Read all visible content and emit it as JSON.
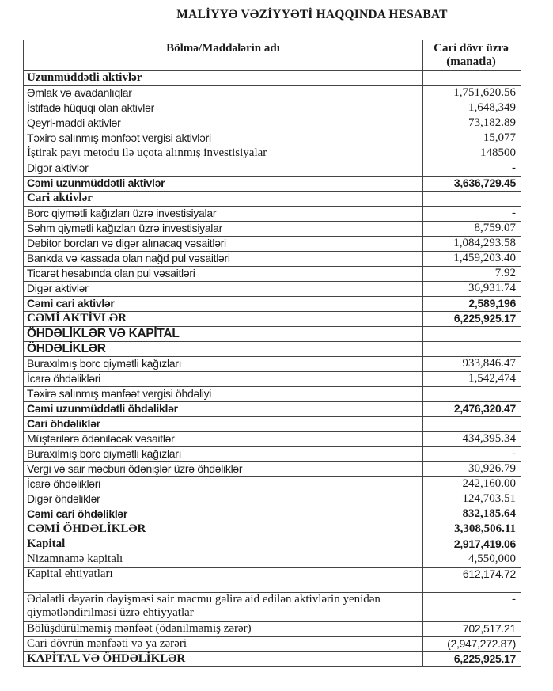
{
  "title": "MALİYYƏ VƏZİYYƏTİ HAQQINDA HESABAT",
  "header": {
    "name_col": "Bölmə/Maddələrin adı",
    "value_col": "Cari dövr üzrə (manatla)"
  },
  "rows": [
    {
      "label": "Uzunmüddətli aktivlər",
      "value": ""
    },
    {
      "label": "Əmlak və avadanlıqlar",
      "value": "1,751,620.56"
    },
    {
      "label": "İstifadə hüquqi olan aktivlər",
      "value": "1,648,349"
    },
    {
      "label": "Qeyri-maddi aktivlər",
      "value": "73,182.89"
    },
    {
      "label": "Təxirə salınmış mənfəət vergisi aktivləri",
      "value": "15,077"
    },
    {
      "label": "İştirak payı metodu ilə uçota alınmış investisiyalar",
      "value": "148500"
    },
    {
      "label": "Digər aktivlər",
      "value": "-"
    },
    {
      "label": "Cəmi uzunmüddətli aktivlər",
      "value": "3,636,729.45"
    },
    {
      "label": "Cari aktivlər",
      "value": ""
    },
    {
      "label": "Borc qiymətli kağızları üzrə investisiyalar",
      "value": "-"
    },
    {
      "label": "Səhm qiymətli kağızları üzrə investisiyalar",
      "value": "8,759.07"
    },
    {
      "label": "Debitor borcları və digər alınacaq vəsaitləri",
      "value": "1,084,293.58"
    },
    {
      "label": "Bankda və kassada olan nağd pul vəsaitləri",
      "value": "1,459,203.40"
    },
    {
      "label": "Ticarət hesabında olan pul vəsaitləri",
      "value": "7.92"
    },
    {
      "label": "Digər aktivlər",
      "value": "36,931.74"
    },
    {
      "label": "Cəmi cari aktivlər",
      "value": "2,589,196"
    },
    {
      "label": "CƏMİ AKTİVLƏR",
      "value": "6,225,925.17"
    },
    {
      "label": "ÖHDƏLİKLƏR VƏ KAPİTAL",
      "value": ""
    },
    {
      "label": "ÖHDƏLİKLƏR",
      "value": ""
    },
    {
      "label": "Buraxılmış borc qiymətli kağızları",
      "value": "933,846.47"
    },
    {
      "label": "İcarə öhdəlikləri",
      "value": "1,542,474"
    },
    {
      "label": "Təxirə salınmış mənfəət vergisi öhdəliyi",
      "value": ""
    },
    {
      "label": "Cəmi uzunmüddətli öhdəliklər",
      "value": "2,476,320.47"
    },
    {
      "label": "Cari öhdəliklər",
      "value": ""
    },
    {
      "label": "Müştərilərə ödəniləcək vəsaitlər",
      "value": "434,395.34"
    },
    {
      "label": "Buraxılmış borc qiymətli kağızları",
      "value": "-"
    },
    {
      "label": "Vergi və sair məcburi ödənişlər üzrə öhdəliklər",
      "value": "30,926.79"
    },
    {
      "label": "İcarə öhdəlikləri",
      "value": "242,160.00"
    },
    {
      "label": "Digər öhdəliklər",
      "value": "124,703.51"
    },
    {
      "label": "Cəmi cari öhdəliklər",
      "value": "832,185.64"
    },
    {
      "label": "CƏMİ ÖHDƏLİKLƏR",
      "value": "3,308,506.11"
    },
    {
      "label": "Kapital",
      "value": "2,917,419.06"
    },
    {
      "label": "Nizamnamə kapitalı",
      "value": "4,550,000"
    },
    {
      "label": "Kapital ehtiyatları",
      "value": "612,174.72"
    },
    {
      "label": "Ədalətli dəyərin dəyişməsi sair məcmu gəlirə aid edilən aktivlərin yenidən qiymətləndirilməsi üzrə ehtiyyatlar",
      "value": "-"
    },
    {
      "label": "Bölüşdürülməmiş mənfəət (ödənilməmiş zərər)",
      "value": "702,517.21"
    },
    {
      "label": "Cari dövrün mənfəəti və ya zərəri",
      "value": "(2,947,272.87)"
    },
    {
      "label": "KAPİTAL VƏ ÖHDƏLİKLƏR",
      "value": "6,225,925.17"
    }
  ]
}
